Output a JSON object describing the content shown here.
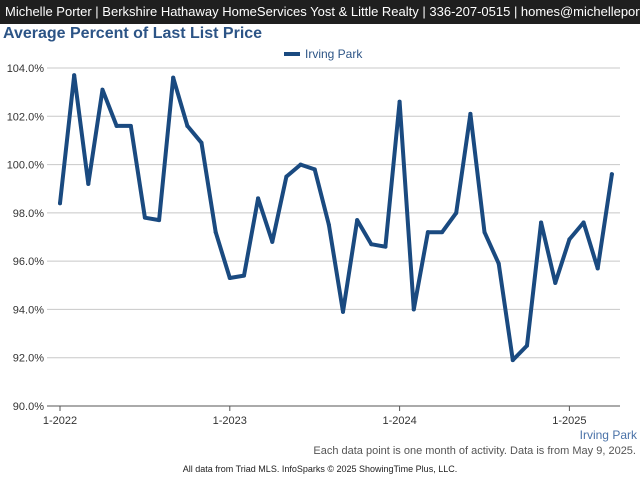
{
  "header": {
    "banner": "Michelle Porter | Berkshire Hathaway HomeServices Yost & Little Realty | 336-207-0515 | homes@michelleporter.com"
  },
  "footer": {
    "x_axis_name": "Irving Park",
    "note": "Each data point is one month of activity. Data is from May 9, 2025.",
    "source": "All data from Triad MLS. InfoSparks © 2025 ShowingTime Plus, LLC."
  },
  "colors": {
    "series": "#1a4a80",
    "title": "#2c5486",
    "grid": "#c8c8c8"
  },
  "chart_data": {
    "type": "line",
    "title": "Average Percent of Last List Price",
    "ylim": [
      90,
      104
    ],
    "yticks": [
      90,
      92,
      94,
      96,
      98,
      100,
      102,
      104
    ],
    "ytick_labels": [
      "90.0%",
      "92.0%",
      "94.0%",
      "96.0%",
      "98.0%",
      "100.0%",
      "102.0%",
      "104.0%"
    ],
    "xlim": [
      "2022-01",
      "2025-04"
    ],
    "xticks": [
      "2022-01",
      "2023-01",
      "2024-01",
      "2025-01"
    ],
    "xtick_labels": [
      "1-2022",
      "1-2023",
      "1-2024",
      "1-2025"
    ],
    "grid": true,
    "legend_position": "top-center",
    "series": [
      {
        "name": "Irving Park",
        "x": [
          "2022-01",
          "2022-02",
          "2022-03",
          "2022-04",
          "2022-05",
          "2022-06",
          "2022-07",
          "2022-08",
          "2022-09",
          "2022-10",
          "2022-11",
          "2022-12",
          "2023-01",
          "2023-02",
          "2023-03",
          "2023-04",
          "2023-05",
          "2023-06",
          "2023-07",
          "2023-08",
          "2023-09",
          "2023-10",
          "2023-11",
          "2023-12",
          "2024-01",
          "2024-02",
          "2024-03",
          "2024-04",
          "2024-05",
          "2024-06",
          "2024-07",
          "2024-08",
          "2024-09",
          "2024-10",
          "2024-11",
          "2024-12",
          "2025-01",
          "2025-02",
          "2025-03",
          "2025-04"
        ],
        "values": [
          98.4,
          103.7,
          99.2,
          103.1,
          101.6,
          101.6,
          97.8,
          97.7,
          103.6,
          101.6,
          100.9,
          97.2,
          95.3,
          95.4,
          98.6,
          96.8,
          99.5,
          100.0,
          99.8,
          97.5,
          93.9,
          97.7,
          96.7,
          96.6,
          102.6,
          94.0,
          97.2,
          97.2,
          98.0,
          102.1,
          97.2,
          95.9,
          91.9,
          92.5,
          97.6,
          95.1,
          96.9,
          97.6,
          95.7,
          99.6
        ]
      }
    ]
  }
}
